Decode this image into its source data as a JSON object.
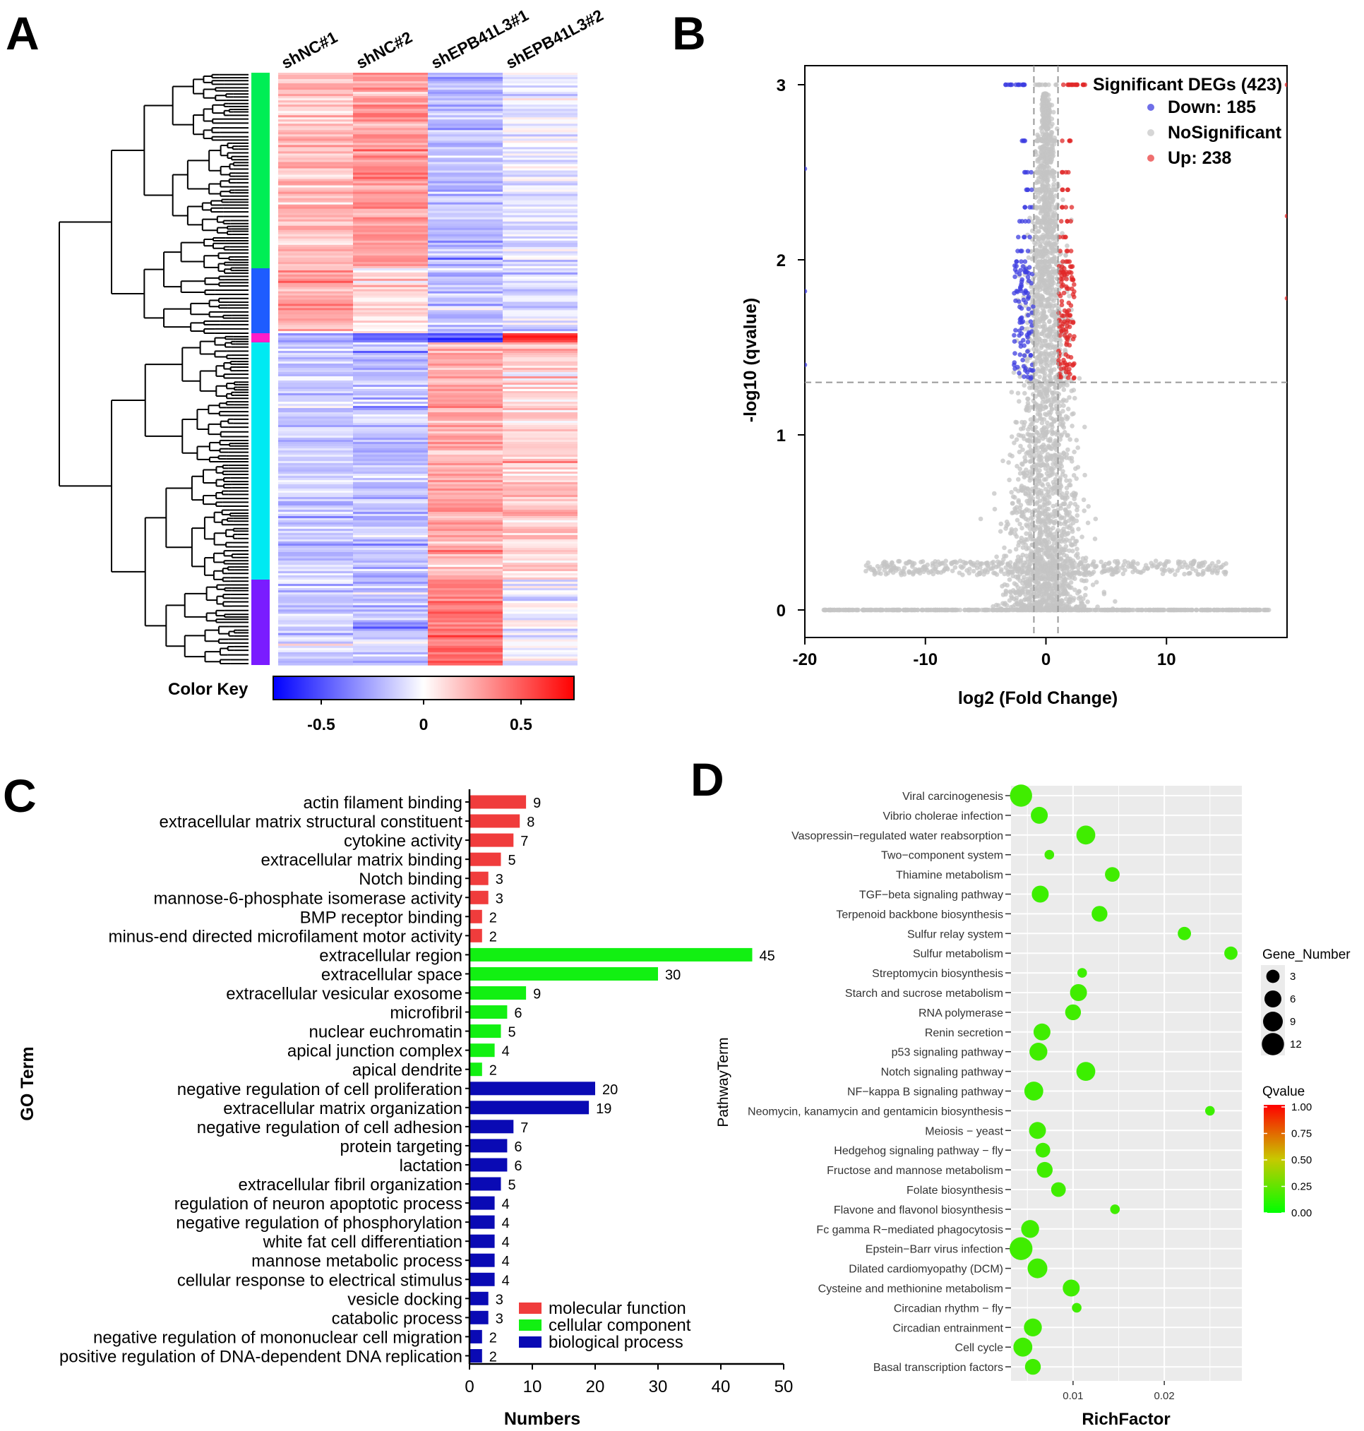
{
  "panel_letters": [
    "A",
    "B",
    "C",
    "D"
  ],
  "chart_data": [
    {
      "panel": "A",
      "type": "heatmap",
      "columns": [
        "shNC#1",
        "shNC#2",
        "shEPB41L3#1",
        "shEPB41L3#2"
      ],
      "color_key": {
        "label": "Color Key",
        "ticks": [
          "-0.5",
          "0",
          "0.5"
        ],
        "low_color": "#0000ff",
        "mid_color": "#ffffff",
        "high_color": "#ff0000"
      },
      "clusters": [
        {
          "color": "#00ee55",
          "fraction": 0.33,
          "pattern": [
            0.22,
            0.34,
            -0.22,
            -0.08
          ]
        },
        {
          "color": "#1e5cff",
          "fraction": 0.11,
          "pattern": [
            0.3,
            0.12,
            -0.22,
            -0.12
          ]
        },
        {
          "color": "#ff1cc8",
          "fraction": 0.015,
          "pattern": [
            -0.3,
            -0.45,
            -0.6,
            0.75
          ]
        },
        {
          "color": "#00eaf2",
          "fraction": 0.4,
          "pattern": [
            -0.18,
            -0.22,
            0.3,
            0.15
          ]
        },
        {
          "color": "#7a1cff",
          "fraction": 0.145,
          "pattern": [
            -0.15,
            -0.18,
            0.45,
            -0.05
          ]
        }
      ]
    },
    {
      "panel": "B",
      "type": "scatter",
      "xlabel": "log2 (Fold Change)",
      "ylabel": "-log10 (qvalue)",
      "xlim": [
        -20,
        20
      ],
      "ylim": [
        0,
        3.1
      ],
      "xticks": [
        "-20",
        "-10",
        "0",
        "10"
      ],
      "yticks": [
        "0",
        "1",
        "2",
        "3"
      ],
      "thresholds": {
        "fold_change_log2": 1,
        "neg_log10_q": 1.3
      },
      "legend": {
        "title": "Significant DEGs (423)",
        "items": [
          {
            "label": "Down: 185",
            "color": "#6f6fe8"
          },
          {
            "label": "NoSignificant",
            "color": "#d6d6d6"
          },
          {
            "label": "Up: 238",
            "color": "#ef6f6f"
          }
        ]
      },
      "colors": {
        "down": "#3d3de0",
        "ns": "#c4c4c4",
        "up": "#e02828"
      }
    },
    {
      "panel": "C",
      "type": "bar",
      "orientation": "horizontal",
      "ylabel": "GO Term",
      "xlabel": "Numbers",
      "xlim": [
        0,
        50
      ],
      "xticks": [
        0,
        10,
        20,
        30,
        40,
        50
      ],
      "legend": [
        {
          "label": "molecular function",
          "color": "#f03c3c"
        },
        {
          "label": "cellular component",
          "color": "#12f012"
        },
        {
          "label": "biological process",
          "color": "#0a0ab4"
        }
      ],
      "categories": [
        "actin filament binding",
        "extracellular matrix structural constituent",
        "cytokine activity",
        "extracellular matrix binding",
        "Notch binding",
        "mannose-6-phosphate isomerase activity",
        "BMP receptor binding",
        "minus-end directed microfilament motor activity",
        "extracellular region",
        "extracellular space",
        "extracellular vesicular exosome",
        "microfibril",
        "nuclear euchromatin",
        "apical junction complex",
        "apical dendrite",
        "negative regulation of cell proliferation",
        "extracellular matrix organization",
        "negative regulation of cell adhesion",
        "protein targeting",
        "lactation",
        "extracellular fibril organization",
        "regulation of neuron apoptotic process",
        "negative regulation of phosphorylation",
        "white fat cell differentiation",
        "mannose metabolic process",
        "cellular response to electrical stimulus",
        "vesicle docking",
        "catabolic process",
        "negative regulation of mononuclear cell migration",
        "positive regulation of DNA-dependent DNA replication"
      ],
      "values": [
        9,
        8,
        7,
        5,
        3,
        3,
        2,
        2,
        45,
        30,
        9,
        6,
        5,
        4,
        2,
        20,
        19,
        7,
        6,
        6,
        5,
        4,
        4,
        4,
        4,
        4,
        3,
        3,
        2,
        2
      ],
      "groups": [
        0,
        0,
        0,
        0,
        0,
        0,
        0,
        0,
        1,
        1,
        1,
        1,
        1,
        1,
        1,
        2,
        2,
        2,
        2,
        2,
        2,
        2,
        2,
        2,
        2,
        2,
        2,
        2,
        2,
        2
      ]
    },
    {
      "panel": "D",
      "type": "scatter",
      "xlabel": "RichFactor",
      "ylabel": "PathwayTerm",
      "xticks": [
        0.01,
        0.02
      ],
      "xtick_labels": [
        "0.01",
        "0.02"
      ],
      "xlim": [
        0.0032,
        0.0285
      ],
      "size_legend": {
        "title": "Gene_Number",
        "values": [
          3,
          6,
          9,
          12
        ]
      },
      "color_legend": {
        "title": "Qvalue",
        "ticks": [
          "1.00",
          "0.75",
          "0.50",
          "0.25",
          "0.00"
        ],
        "high_color": "#ff0000",
        "low_color": "#00ff00"
      },
      "terms": [
        "Viral carcinogenesis",
        "Vibrio cholerae infection",
        "Vasopressin−regulated water reabsorption",
        "Two−component system",
        "Thiamine metabolism",
        "TGF−beta signaling pathway",
        "Terpenoid backbone biosynthesis",
        "Sulfur relay system",
        "Sulfur metabolism",
        "Streptomycin biosynthesis",
        "Starch and sucrose metabolism",
        "RNA polymerase",
        "Renin secretion",
        "p53 signaling pathway",
        "Notch signaling pathway",
        "NF−kappa B signaling pathway",
        "Neomycin, kanamycin and gentamicin biosynthesis",
        "Meiosis − yeast",
        "Hedgehog signaling pathway − fly",
        "Fructose and mannose metabolism",
        "Folate biosynthesis",
        "Flavone and flavonol biosynthesis",
        "Fc gamma R−mediated phagocytosis",
        "Epstein−Barr virus infection",
        "Dilated cardiomyopathy (DCM)",
        "Cysteine and methionine metabolism",
        "Circadian rhythm − fly",
        "Circadian entrainment",
        "Cell cycle",
        "Basal transcription factors"
      ],
      "rich_factor": [
        0.0043,
        0.0063,
        0.0114,
        0.0074,
        0.0143,
        0.0064,
        0.0129,
        0.0222,
        0.0273,
        0.011,
        0.0106,
        0.01,
        0.0066,
        0.0062,
        0.0114,
        0.0057,
        0.025,
        0.0061,
        0.0067,
        0.0069,
        0.0084,
        0.0146,
        0.0053,
        0.0043,
        0.0061,
        0.0098,
        0.0104,
        0.0056,
        0.0045,
        0.0056
      ],
      "gene_number": [
        12,
        6,
        8,
        1,
        4,
        6,
        5,
        3,
        3,
        1,
        6,
        5,
        6,
        7,
        8,
        8,
        1,
        6,
        4,
        5,
        4,
        1,
        7,
        13,
        9,
        6,
        1,
        7,
        8,
        5
      ],
      "qvalue": [
        0.16,
        0.15,
        0.16,
        0.16,
        0.16,
        0.15,
        0.15,
        0.15,
        0.15,
        0.15,
        0.16,
        0.16,
        0.16,
        0.16,
        0.15,
        0.15,
        0.15,
        0.16,
        0.16,
        0.16,
        0.16,
        0.16,
        0.16,
        0.16,
        0.16,
        0.16,
        0.16,
        0.16,
        0.16,
        0.16
      ]
    }
  ]
}
